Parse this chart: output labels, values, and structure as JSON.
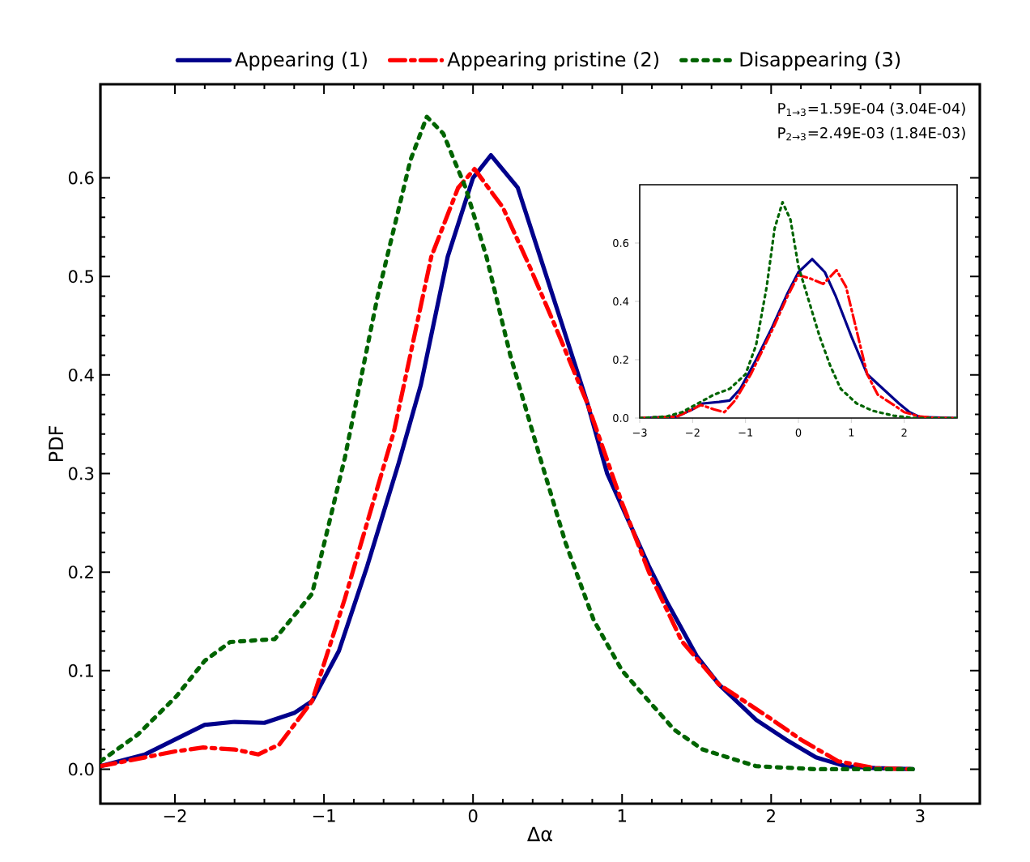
{
  "chart_data": [
    {
      "type": "line",
      "xlabel": "Δα",
      "ylabel": "PDF",
      "legend": "top",
      "marker": "none",
      "xlim": [
        -2.5,
        3.4
      ],
      "ylim": [
        -0.035,
        0.695
      ],
      "xticks": [
        {
          "value": -2,
          "label": "−2"
        },
        {
          "value": -1,
          "label": "−1"
        },
        0,
        1,
        2,
        3
      ],
      "yticks": [
        {
          "value": 0,
          "label": "0.0"
        },
        0.1,
        0.2,
        0.3,
        0.4,
        0.5,
        0.6
      ],
      "annotations": [
        "P$_{1→3}$=1.59E-04 (3.04E-04)",
        "P$_{2→3}$=2.49E-03 (1.84E-03)"
      ],
      "series": [
        {
          "name": "Appearing (1)",
          "color": "#00008b",
          "line_style": "solid",
          "x": [
            -2.5,
            -2.2,
            -2.0,
            -1.8,
            -1.6,
            -1.4,
            -1.2,
            -1.08,
            -0.9,
            -0.71,
            -0.5,
            -0.35,
            -0.17,
            0,
            0.12,
            0.3,
            0.45,
            0.6,
            0.77,
            0.9,
            1.18,
            1.3,
            1.5,
            1.65,
            1.9,
            2.1,
            2.3,
            2.5,
            2.7,
            2.95
          ],
          "values": [
            0.003,
            0.015,
            0.03,
            0.045,
            0.048,
            0.047,
            0.057,
            0.069,
            0.12,
            0.206,
            0.31,
            0.39,
            0.52,
            0.6,
            0.623,
            0.59,
            0.52,
            0.45,
            0.37,
            0.3,
            0.206,
            0.17,
            0.115,
            0.086,
            0.05,
            0.03,
            0.012,
            0.003,
            0.001,
            0
          ]
        },
        {
          "name": "Appearing pristine (2)",
          "color": "#ff0000",
          "line_style": "dashdot",
          "x": [
            -2.5,
            -2.2,
            -2.0,
            -1.81,
            -1.6,
            -1.44,
            -1.3,
            -1.08,
            -0.86,
            -0.53,
            -0.28,
            -0.1,
            0.01,
            0.2,
            0.38,
            0.55,
            0.77,
            1.0,
            1.18,
            1.4,
            1.65,
            1.98,
            2.2,
            2.45,
            2.7,
            2.95
          ],
          "values": [
            0.003,
            0.012,
            0.018,
            0.022,
            0.02,
            0.015,
            0.025,
            0.069,
            0.173,
            0.343,
            0.52,
            0.59,
            0.609,
            0.57,
            0.51,
            0.45,
            0.37,
            0.27,
            0.2,
            0.13,
            0.086,
            0.053,
            0.03,
            0.008,
            0.001,
            0
          ]
        },
        {
          "name": "Disappearing (3)",
          "color": "#006400",
          "line_style": "dotted",
          "x": [
            -2.5,
            -2.25,
            -1.99,
            -1.8,
            -1.63,
            -1.33,
            -1.08,
            -0.86,
            -0.64,
            -0.42,
            -0.31,
            -0.2,
            -0.05,
            0.09,
            0.25,
            0.45,
            0.62,
            0.81,
            1.0,
            1.18,
            1.35,
            1.54,
            1.9,
            2.3,
            2.95
          ],
          "values": [
            0.008,
            0.035,
            0.074,
            0.11,
            0.129,
            0.132,
            0.178,
            0.316,
            0.48,
            0.618,
            0.662,
            0.645,
            0.59,
            0.52,
            0.42,
            0.316,
            0.23,
            0.151,
            0.1,
            0.069,
            0.04,
            0.02,
            0.003,
            0,
            0
          ]
        }
      ]
    },
    {
      "type": "line",
      "marker": "none",
      "xlim": [
        -3,
        3
      ],
      "ylim": [
        0,
        0.8
      ],
      "xticks": [
        {
          "value": -3,
          "label": "−3"
        },
        {
          "value": -2,
          "label": "−2"
        },
        {
          "value": -1,
          "label": "−1"
        },
        0,
        1,
        2
      ],
      "yticks": [
        {
          "value": 0,
          "label": "0.0"
        },
        {
          "value": 0.2,
          "label": "0.2"
        },
        {
          "value": 0.4,
          "label": "0.4"
        },
        {
          "value": 0.6,
          "label": "0.6"
        }
      ],
      "series": [
        {
          "color": "#00008b",
          "line_style": "solid",
          "x": [
            -3,
            -2.3,
            -2.0,
            -1.8,
            -1.5,
            -1.3,
            -1.1,
            -0.8,
            -0.5,
            -0.2,
            0,
            0.26,
            0.5,
            0.7,
            1.0,
            1.3,
            1.6,
            1.9,
            2.1,
            2.3,
            3
          ],
          "values": [
            0,
            0.005,
            0.03,
            0.05,
            0.055,
            0.06,
            0.1,
            0.2,
            0.31,
            0.43,
            0.5,
            0.545,
            0.5,
            0.42,
            0.28,
            0.15,
            0.1,
            0.05,
            0.02,
            0.003,
            0
          ]
        },
        {
          "color": "#ff0000",
          "line_style": "dashdot",
          "x": [
            -3,
            -2.3,
            -2.0,
            -1.85,
            -1.6,
            -1.4,
            -1.2,
            -0.9,
            -0.5,
            -0.2,
            0,
            0.2,
            0.47,
            0.72,
            0.9,
            1.1,
            1.3,
            1.5,
            1.8,
            2.0,
            2.3,
            2.6,
            3
          ],
          "values": [
            0,
            0.005,
            0.03,
            0.045,
            0.03,
            0.02,
            0.06,
            0.15,
            0.3,
            0.42,
            0.49,
            0.48,
            0.46,
            0.507,
            0.45,
            0.3,
            0.15,
            0.08,
            0.045,
            0.02,
            0.005,
            0,
            0
          ]
        },
        {
          "color": "#006400",
          "line_style": "dotted",
          "x": [
            -3,
            -2.5,
            -2.2,
            -1.9,
            -1.6,
            -1.3,
            -1.0,
            -0.8,
            -0.6,
            -0.45,
            -0.3,
            -0.15,
            0,
            0.2,
            0.4,
            0.6,
            0.8,
            1.1,
            1.4,
            1.8,
            2.2,
            3
          ],
          "values": [
            0,
            0.005,
            0.02,
            0.05,
            0.08,
            0.1,
            0.15,
            0.25,
            0.45,
            0.65,
            0.74,
            0.68,
            0.52,
            0.4,
            0.28,
            0.18,
            0.1,
            0.05,
            0.025,
            0.008,
            0,
            0
          ]
        }
      ]
    }
  ]
}
